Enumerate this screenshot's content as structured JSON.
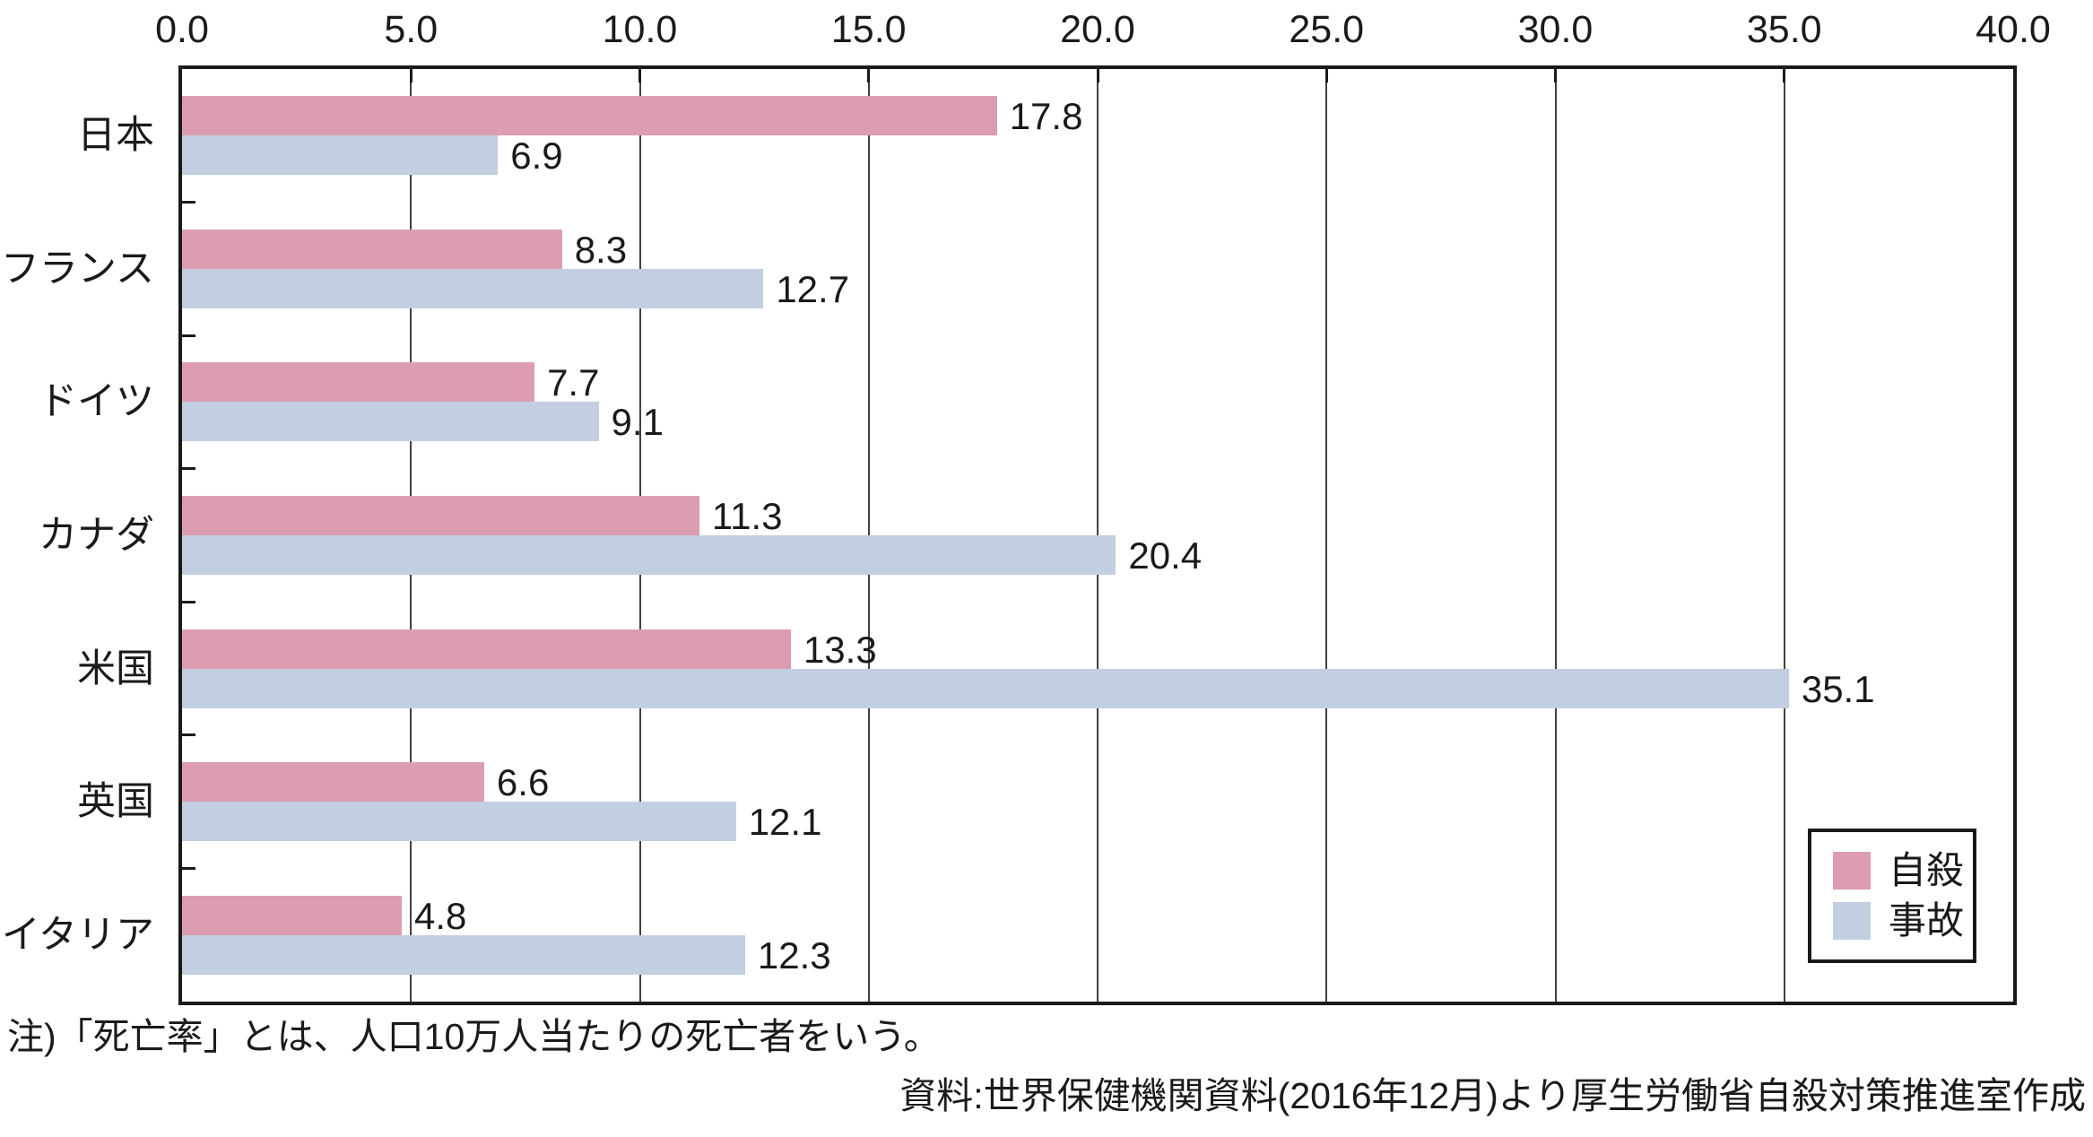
{
  "chart_data": {
    "type": "bar",
    "orientation": "horizontal",
    "categories": [
      "日本",
      "フランス",
      "ドイツ",
      "カナダ",
      "米国",
      "英国",
      "イタリア"
    ],
    "series": [
      {
        "name": "自殺",
        "color": "#dc9db1",
        "values": [
          17.8,
          8.3,
          7.7,
          11.3,
          13.3,
          6.6,
          4.8
        ]
      },
      {
        "name": "事故",
        "color": "#c1cfe0",
        "values": [
          6.9,
          12.7,
          9.1,
          20.4,
          35.1,
          12.1,
          12.3
        ]
      }
    ],
    "xlim": [
      0,
      40
    ],
    "xticks": [
      0,
      5,
      10,
      15,
      20,
      25,
      30,
      35,
      40
    ],
    "xtick_labels": [
      "0.0",
      "5.0",
      "10.0",
      "15.0",
      "20.0",
      "25.0",
      "30.0",
      "35.0",
      "40.0"
    ],
    "axis_position": "top",
    "grid": true,
    "legend_position": "inside-bottom-right",
    "value_label_decimals": 1
  },
  "colors": {
    "suicide": "#dc9db1",
    "accident": "#c1cfe0",
    "frame": "#1a1a1a",
    "grid": "#404040",
    "text": "#1a1a1a",
    "background": "#ffffff"
  },
  "notes": {
    "definition": "注)「死亡率」とは、人口10万人当たりの死亡者をいう。",
    "source": "資料:世界保健機関資料(2016年12月)より厚生労働省自殺対策推進室作成"
  }
}
